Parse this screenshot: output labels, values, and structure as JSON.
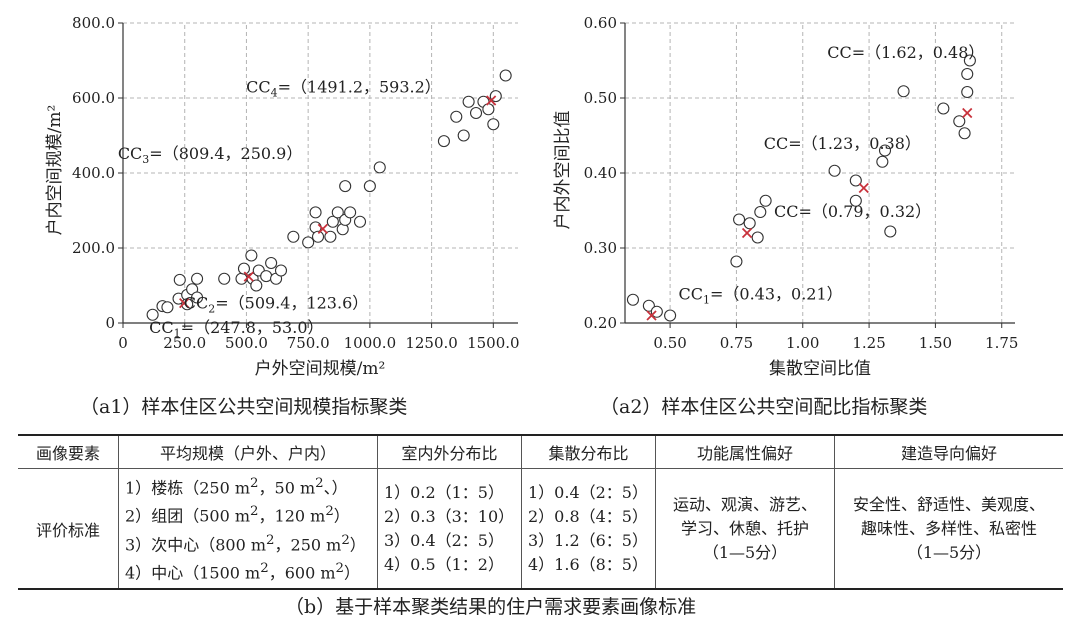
{
  "chart_data": [
    {
      "type": "scatter",
      "xlabel": "户外空间规模/m²",
      "ylabel": "户内空间规模/m²",
      "xlim": [
        0,
        1600
      ],
      "ylim": [
        0,
        800
      ],
      "xticks": [
        0,
        250,
        500,
        750,
        1000,
        1250,
        1500
      ],
      "xtick_labels": [
        "0",
        "250.0",
        "500.0",
        "750.0",
        "1000.0",
        "1250.0",
        "1500.0"
      ],
      "yticks": [
        0,
        200,
        400,
        600,
        800
      ],
      "ytick_labels": [
        "0",
        "200.0",
        "400.0",
        "600.0",
        "800.0"
      ],
      "grid": true,
      "points": [
        [
          120,
          22
        ],
        [
          160,
          45
        ],
        [
          180,
          42
        ],
        [
          225,
          65
        ],
        [
          230,
          115
        ],
        [
          260,
          75
        ],
        [
          260,
          50
        ],
        [
          280,
          90
        ],
        [
          300,
          118
        ],
        [
          300,
          68
        ],
        [
          410,
          118
        ],
        [
          480,
          118
        ],
        [
          490,
          145
        ],
        [
          520,
          180
        ],
        [
          525,
          118
        ],
        [
          540,
          100
        ],
        [
          550,
          140
        ],
        [
          580,
          125
        ],
        [
          600,
          160
        ],
        [
          620,
          118
        ],
        [
          640,
          140
        ],
        [
          690,
          230
        ],
        [
          750,
          215
        ],
        [
          780,
          295
        ],
        [
          780,
          255
        ],
        [
          790,
          230
        ],
        [
          840,
          230
        ],
        [
          850,
          270
        ],
        [
          870,
          295
        ],
        [
          890,
          250
        ],
        [
          900,
          275
        ],
        [
          900,
          365
        ],
        [
          920,
          295
        ],
        [
          960,
          270
        ],
        [
          1000,
          365
        ],
        [
          1040,
          415
        ],
        [
          1300,
          485
        ],
        [
          1350,
          550
        ],
        [
          1380,
          500
        ],
        [
          1400,
          590
        ],
        [
          1430,
          560
        ],
        [
          1460,
          590
        ],
        [
          1480,
          570
        ],
        [
          1500,
          530
        ],
        [
          1510,
          605
        ],
        [
          1550,
          660
        ]
      ],
      "centroids": [
        {
          "x": 247.8,
          "y": 53.0,
          "label_prefix": "CC",
          "label_sub": "1",
          "label_rest": "=（247.8，53.0）"
        },
        {
          "x": 509.4,
          "y": 123.6,
          "label_prefix": "CC",
          "label_sub": "2",
          "label_rest": "=（509.4，123.6）"
        },
        {
          "x": 809.4,
          "y": 250.9,
          "label_prefix": "CC",
          "label_sub": "3",
          "label_rest": "=（809.4，250.9）"
        },
        {
          "x": 1491.2,
          "y": 593.2,
          "label_prefix": "CC",
          "label_sub": "4",
          "label_rest": "=（1491.2，593.2）"
        }
      ]
    },
    {
      "type": "scatter",
      "xlabel": "集散空间比值",
      "ylabel": "户内外空间比值",
      "xlim": [
        0.33,
        1.8
      ],
      "ylim": [
        0.2,
        0.6
      ],
      "xticks": [
        0.5,
        0.75,
        1.0,
        1.25,
        1.5,
        1.75
      ],
      "xtick_labels": [
        "0.50",
        "0.75",
        "1.00",
        "1.25",
        "1.50",
        "1.75"
      ],
      "yticks": [
        0.2,
        0.3,
        0.4,
        0.5,
        0.6
      ],
      "ytick_labels": [
        "0.20",
        "0.30",
        "0.40",
        "0.50",
        "0.60"
      ],
      "grid": true,
      "points": [
        [
          0.36,
          0.231
        ],
        [
          0.42,
          0.223
        ],
        [
          0.45,
          0.215
        ],
        [
          0.5,
          0.21
        ],
        [
          0.75,
          0.282
        ],
        [
          0.76,
          0.338
        ],
        [
          0.8,
          0.333
        ],
        [
          0.83,
          0.314
        ],
        [
          0.84,
          0.348
        ],
        [
          0.86,
          0.363
        ],
        [
          1.12,
          0.403
        ],
        [
          1.2,
          0.39
        ],
        [
          1.2,
          0.363
        ],
        [
          1.3,
          0.415
        ],
        [
          1.31,
          0.43
        ],
        [
          1.33,
          0.322
        ],
        [
          1.38,
          0.509
        ],
        [
          1.53,
          0.486
        ],
        [
          1.59,
          0.469
        ],
        [
          1.61,
          0.453
        ],
        [
          1.62,
          0.508
        ],
        [
          1.62,
          0.532
        ],
        [
          1.63,
          0.55
        ]
      ],
      "centroids": [
        {
          "x": 0.43,
          "y": 0.21,
          "label_prefix": "CC",
          "label_sub": "1",
          "label_rest": "=（0.43，0.21）"
        },
        {
          "x": 0.79,
          "y": 0.32,
          "label_prefix": "CC",
          "label_sub": "",
          "label_rest": "=（0.79，0.32）"
        },
        {
          "x": 1.23,
          "y": 0.38,
          "label_prefix": "CC",
          "label_sub": "",
          "label_rest": "=（1.23，0.38）"
        },
        {
          "x": 1.62,
          "y": 0.48,
          "label_prefix": "CC",
          "label_sub": "",
          "label_rest": "=（1.62，0.48）"
        }
      ]
    }
  ],
  "captions": {
    "a1": "（a1）样本住区公共空间规模指标聚类",
    "a2": "（a2）样本住区公共空间配比指标聚类",
    "b": "（b）基于样本聚类结果的住户需求要素画像标准"
  },
  "table": {
    "headers": [
      "画像要素",
      "平均规模（户外、户内）",
      "室内外分布比",
      "集散分布比",
      "功能属性偏好",
      "建造导向偏好"
    ],
    "row_label": "评价标准",
    "scale": {
      "items": [
        {
          "num": "1）",
          "name": "楼栋",
          "a": "250 m",
          "b": "50 m",
          "tail": "、）"
        },
        {
          "num": "2）",
          "name": "组团",
          "a": "500 m",
          "b": "120 m",
          "tail": "）"
        },
        {
          "num": "3）",
          "name": "次中心",
          "a": "800 m",
          "b": "250 m",
          "tail": "）"
        },
        {
          "num": "4）",
          "name": "中心",
          "a": "1500 m",
          "b": "600 m",
          "tail": "）"
        }
      ]
    },
    "indoor_outdoor": [
      "1）0.2（1：5）",
      "2）0.3（3：10）",
      "3）0.4（2：5）",
      "4）0.5（1：2）"
    ],
    "distribution": [
      "1）0.4（2：5）",
      "2）0.8（4：5）",
      "3）1.2（6：5）",
      "4）1.6（8：5）"
    ],
    "function_pref": [
      "运动、观演、游艺、",
      "学习、休憩、托护",
      "（1—5分）"
    ],
    "build_pref": [
      "安全性、舒适性、美观度、",
      "趣味性、多样性、私密性",
      "（1—5分）"
    ]
  },
  "colors": {
    "centroid": "#c8323c",
    "grid": "#b4b4b4",
    "axis": "#333333"
  }
}
